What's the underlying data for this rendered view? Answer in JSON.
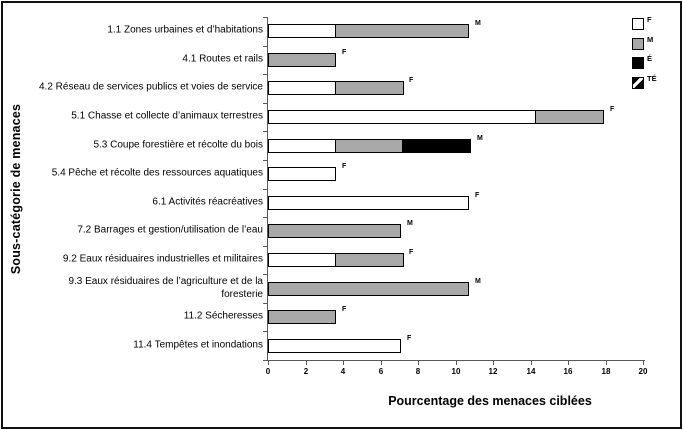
{
  "chart_data": {
    "type": "bar",
    "orientation": "horizontal",
    "stacked": true,
    "title": "",
    "xlabel": "Pourcentage des menaces ciblées",
    "ylabel": "Sous-catégorie de menaces",
    "xlim": [
      0,
      20
    ],
    "xticks": [
      0,
      2,
      4,
      6,
      8,
      10,
      12,
      14,
      16,
      18,
      20
    ],
    "grid": false,
    "legend_position": "top-right",
    "legend": [
      {
        "label": "F",
        "swatch": "white"
      },
      {
        "label": "M",
        "swatch": "gray"
      },
      {
        "label": "É",
        "swatch": "black"
      },
      {
        "label": "TÉ",
        "swatch": "hatch"
      }
    ],
    "level_colors": {
      "F": "#ffffff",
      "M": "#a8a8a8",
      "É": "#000000"
    },
    "categories": [
      {
        "label": "1.1 Zones urbaines et d’habitations",
        "end_label": "M",
        "segments": [
          {
            "level": "F",
            "value": 3.6
          },
          {
            "level": "M",
            "value": 7.1
          }
        ]
      },
      {
        "label": "4.1 Routes et rails",
        "end_label": "F",
        "segments": [
          {
            "level": "M",
            "value": 3.6
          }
        ]
      },
      {
        "label": "4.2 Réseau de services publics et voies de service",
        "end_label": "F",
        "segments": [
          {
            "level": "F",
            "value": 3.6
          },
          {
            "level": "M",
            "value": 3.6
          }
        ]
      },
      {
        "label": "5.1 Chasse et collecte d’animaux terrestres",
        "end_label": "F",
        "segments": [
          {
            "level": "F",
            "value": 14.3
          },
          {
            "level": "M",
            "value": 3.6
          }
        ]
      },
      {
        "label": "5.3 Coupe forestière et récolte du bois",
        "end_label": "M",
        "segments": [
          {
            "level": "F",
            "value": 3.6
          },
          {
            "level": "M",
            "value": 3.6
          },
          {
            "level": "É",
            "value": 3.6
          }
        ]
      },
      {
        "label": "5.4 Pêche et récolte des ressources aquatiques",
        "end_label": "F",
        "segments": [
          {
            "level": "F",
            "value": 3.6
          }
        ]
      },
      {
        "label": "6.1 Activités réacréatives",
        "end_label": "F",
        "segments": [
          {
            "level": "F",
            "value": 10.7
          }
        ]
      },
      {
        "label": "7.2 Barrages et gestion/utilisation de l’eau",
        "end_label": "M",
        "segments": [
          {
            "level": "M",
            "value": 7.1
          }
        ]
      },
      {
        "label": "9.2 Eaux résiduaires industrielles et militaires",
        "end_label": "F",
        "segments": [
          {
            "level": "F",
            "value": 3.6
          },
          {
            "level": "M",
            "value": 3.6
          }
        ]
      },
      {
        "label": "9.3 Eaux résiduaires de l’agriculture et de la foresterie",
        "end_label": "M",
        "segments": [
          {
            "level": "M",
            "value": 10.7
          }
        ]
      },
      {
        "label": "11.2 Sécheresses",
        "end_label": "F",
        "segments": [
          {
            "level": "M",
            "value": 3.6
          }
        ]
      },
      {
        "label": "11.4 Tempêtes et inondations",
        "end_label": "F",
        "segments": [
          {
            "level": "F",
            "value": 7.1
          }
        ]
      }
    ]
  }
}
